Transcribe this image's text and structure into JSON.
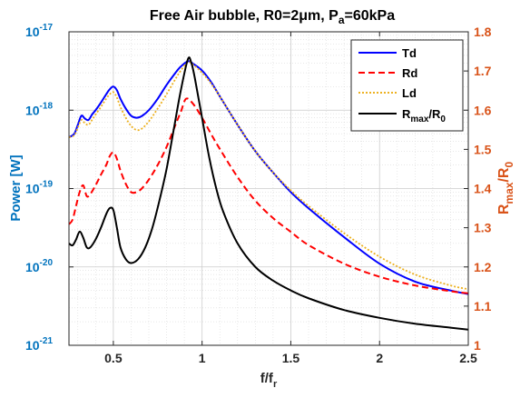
{
  "chart_data": {
    "type": "line",
    "title": {
      "main": "Free Air bubble, R0=2",
      "mu": "μ",
      "mid": "m, P",
      "sub": "a",
      "end": "=60kPa"
    },
    "xlabel": {
      "main": "f/f",
      "sub": "r"
    },
    "ylabel_left": "Power [W]",
    "ylabel_right": {
      "r": "R",
      "rsub": "max",
      "slash": "/R",
      "zsub": "0"
    },
    "xlim": [
      0.25,
      2.5
    ],
    "ylim_left": [
      1e-21,
      1e-17
    ],
    "yscale_left": "log",
    "ylim_right": [
      1,
      1.8
    ],
    "x_ticks": [
      "0.5",
      "1",
      "1.5",
      "2",
      "2.5"
    ],
    "x_tick_values": [
      0.5,
      1,
      1.5,
      2,
      2.5
    ],
    "y_left_ticks": [
      {
        "exp": -21,
        "base": "10",
        "sup": "-21"
      },
      {
        "exp": -20,
        "base": "10",
        "sup": "-20"
      },
      {
        "exp": -19,
        "base": "10",
        "sup": "-19"
      },
      {
        "exp": -18,
        "base": "10",
        "sup": "-18"
      },
      {
        "exp": -17,
        "base": "10",
        "sup": "-17"
      }
    ],
    "y_right_ticks": [
      "1",
      "1.1",
      "1.2",
      "1.3",
      "1.4",
      "1.5",
      "1.6",
      "1.7",
      "1.8"
    ],
    "y_right_tick_values": [
      1,
      1.1,
      1.2,
      1.3,
      1.4,
      1.5,
      1.6,
      1.7,
      1.8
    ],
    "grid": true,
    "legend_position": "top-right",
    "series": [
      {
        "name": "Td",
        "axis": "left",
        "color": "#0000ff",
        "style": "solid",
        "x": [
          0.25,
          0.28,
          0.3,
          0.32,
          0.34,
          0.36,
          0.38,
          0.4,
          0.43,
          0.46,
          0.48,
          0.5,
          0.52,
          0.54,
          0.57,
          0.6,
          0.63,
          0.66,
          0.7,
          0.75,
          0.8,
          0.85,
          0.88,
          0.92,
          0.95,
          1.0,
          1.05,
          1.1,
          1.2,
          1.3,
          1.4,
          1.5,
          1.6,
          1.8,
          2.0,
          2.2,
          2.4,
          2.5
        ],
        "y": [
          4.5e-19,
          5e-19,
          6.5e-19,
          8.5e-19,
          7.8e-19,
          7.5e-19,
          8.8e-19,
          1e-18,
          1.25e-18,
          1.6e-18,
          1.85e-18,
          2e-18,
          1.8e-18,
          1.4e-18,
          1.05e-18,
          8.5e-19,
          8e-19,
          8.4e-19,
          1e-18,
          1.4e-18,
          2.1e-18,
          3e-18,
          3.6e-18,
          4.2e-18,
          3.9e-18,
          3.2e-18,
          2.3e-18,
          1.5e-18,
          6.5e-19,
          3e-19,
          1.6e-19,
          9e-20,
          5.6e-20,
          2.4e-20,
          1.1e-20,
          6.5e-21,
          5e-21,
          4.5e-21
        ]
      },
      {
        "name": "Rd",
        "axis": "left",
        "color": "#ff0000",
        "style": "dashed",
        "x": [
          0.25,
          0.27,
          0.29,
          0.31,
          0.33,
          0.35,
          0.37,
          0.4,
          0.43,
          0.46,
          0.48,
          0.5,
          0.52,
          0.54,
          0.57,
          0.6,
          0.63,
          0.66,
          0.7,
          0.75,
          0.8,
          0.85,
          0.88,
          0.91,
          0.95,
          1.0,
          1.05,
          1.1,
          1.2,
          1.3,
          1.4,
          1.5,
          1.6,
          1.8,
          2.0,
          2.2,
          2.4,
          2.5
        ],
        "y": [
          3.5e-20,
          4e-20,
          6e-20,
          9e-20,
          1.1e-19,
          8e-20,
          8.5e-20,
          1.1e-19,
          1.5e-19,
          2e-19,
          2.6e-19,
          2.9e-19,
          2.4e-19,
          1.7e-19,
          1.15e-19,
          9e-20,
          9e-20,
          1e-19,
          1.3e-19,
          2e-19,
          3.4e-19,
          6.5e-19,
          9.5e-19,
          1.4e-18,
          1.2e-18,
          8e-19,
          5e-19,
          3.2e-19,
          1.4e-19,
          7e-20,
          4.2e-20,
          2.8e-20,
          1.9e-20,
          1.1e-20,
          7.5e-21,
          5.8e-21,
          4.9e-21,
          4.6e-21
        ]
      },
      {
        "name": "Ld",
        "axis": "left",
        "color": "#edb120",
        "style": "dotted",
        "x": [
          0.25,
          0.28,
          0.3,
          0.32,
          0.34,
          0.36,
          0.38,
          0.4,
          0.43,
          0.46,
          0.48,
          0.5,
          0.52,
          0.54,
          0.57,
          0.6,
          0.63,
          0.66,
          0.7,
          0.75,
          0.8,
          0.85,
          0.88,
          0.92,
          0.95,
          1.0,
          1.05,
          1.1,
          1.2,
          1.3,
          1.4,
          1.5,
          1.6,
          1.8,
          2.0,
          2.2,
          2.4,
          2.5
        ],
        "y": [
          4.5e-19,
          4.8e-19,
          6e-19,
          7.5e-19,
          6.8e-19,
          6.5e-19,
          7.5e-19,
          8.8e-19,
          1.1e-18,
          1.4e-18,
          1.6e-18,
          1.7e-18,
          1.45e-18,
          1.1e-18,
          8e-19,
          6.3e-19,
          5.6e-19,
          5.8e-19,
          7.2e-19,
          1.05e-18,
          1.6e-18,
          2.5e-18,
          3.2e-18,
          4.1e-18,
          3.8e-18,
          3e-18,
          2.2e-18,
          1.5e-18,
          6.5e-19,
          3e-19,
          1.6e-19,
          9.5e-20,
          6e-20,
          2.7e-20,
          1.35e-20,
          8e-21,
          5.8e-21,
          5.2e-21
        ]
      },
      {
        "name": "R/R0",
        "axis": "right",
        "color": "#000000",
        "style": "solid",
        "x": [
          0.25,
          0.27,
          0.29,
          0.31,
          0.33,
          0.35,
          0.37,
          0.4,
          0.43,
          0.46,
          0.48,
          0.5,
          0.52,
          0.54,
          0.57,
          0.6,
          0.64,
          0.68,
          0.72,
          0.76,
          0.8,
          0.84,
          0.88,
          0.92,
          0.94,
          0.96,
          1.0,
          1.04,
          1.08,
          1.12,
          1.2,
          1.3,
          1.4,
          1.5,
          1.6,
          1.8,
          2.0,
          2.2,
          2.4,
          2.5
        ],
        "y": [
          1.26,
          1.255,
          1.27,
          1.29,
          1.275,
          1.25,
          1.25,
          1.27,
          1.3,
          1.335,
          1.35,
          1.345,
          1.3,
          1.25,
          1.22,
          1.21,
          1.22,
          1.25,
          1.3,
          1.37,
          1.45,
          1.55,
          1.65,
          1.73,
          1.72,
          1.68,
          1.58,
          1.48,
          1.4,
          1.34,
          1.26,
          1.2,
          1.165,
          1.14,
          1.12,
          1.09,
          1.07,
          1.055,
          1.045,
          1.04
        ]
      }
    ]
  }
}
